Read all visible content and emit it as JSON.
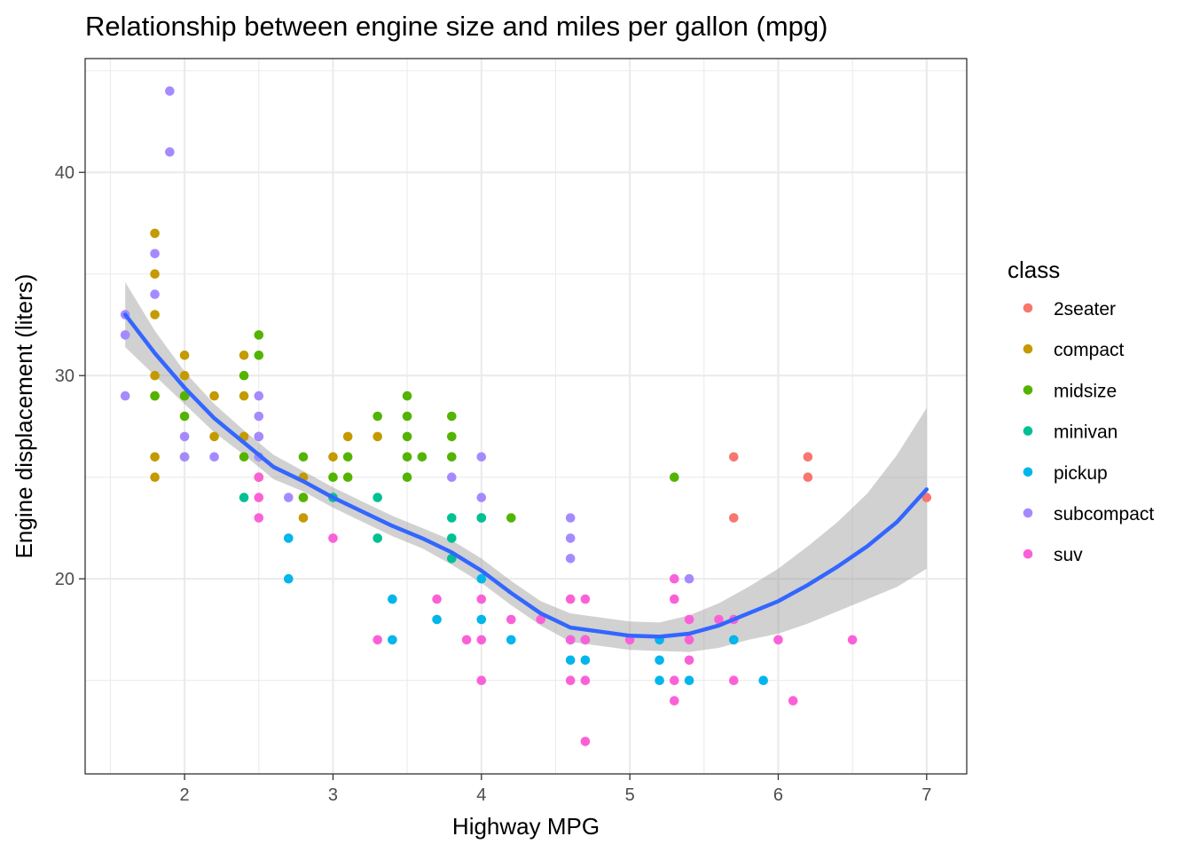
{
  "chart_data": {
    "type": "scatter",
    "title": "Relationship between engine size and miles per gallon (mpg)",
    "xlabel": "Highway MPG",
    "ylabel": "Engine displacement (liters)",
    "xlim": [
      1.33,
      7.27
    ],
    "ylim": [
      10.4,
      45.6
    ],
    "xticks": [
      2,
      3,
      4,
      5,
      6,
      7
    ],
    "yticks": [
      20,
      30,
      40
    ],
    "grid": true,
    "legend": {
      "title": "class",
      "placement": "right",
      "entries": [
        "2seater",
        "compact",
        "midsize",
        "minivan",
        "pickup",
        "subcompact",
        "suv"
      ]
    },
    "colors": {
      "2seater": "#f8766d",
      "compact": "#c49a00",
      "midsize": "#53b400",
      "minivan": "#00c094",
      "pickup": "#00b6eb",
      "subcompact": "#a58aff",
      "suv": "#fb61d7",
      "smooth_line": "#3366ff",
      "ribbon": "#999999"
    },
    "series": [
      {
        "name": "2seater",
        "points": [
          [
            5.7,
            26
          ],
          [
            5.7,
            23
          ],
          [
            6.2,
            26
          ],
          [
            6.2,
            25
          ],
          [
            7.0,
            24
          ]
        ]
      },
      {
        "name": "compact",
        "points": [
          [
            1.8,
            37
          ],
          [
            1.8,
            35
          ],
          [
            1.8,
            33
          ],
          [
            1.8,
            30
          ],
          [
            1.8,
            29
          ],
          [
            1.8,
            26
          ],
          [
            1.8,
            25
          ],
          [
            2.0,
            31
          ],
          [
            2.0,
            30
          ],
          [
            2.0,
            29
          ],
          [
            2.2,
            29
          ],
          [
            2.2,
            27
          ],
          [
            2.4,
            31
          ],
          [
            2.4,
            29
          ],
          [
            2.4,
            27
          ],
          [
            2.5,
            27
          ],
          [
            2.5,
            25
          ],
          [
            2.8,
            25
          ],
          [
            2.8,
            24
          ],
          [
            2.8,
            23
          ],
          [
            3.0,
            26
          ],
          [
            3.1,
            27
          ],
          [
            3.3,
            27
          ]
        ]
      },
      {
        "name": "midsize",
        "points": [
          [
            1.8,
            29
          ],
          [
            2.0,
            29
          ],
          [
            2.0,
            28
          ],
          [
            2.0,
            26
          ],
          [
            2.4,
            30
          ],
          [
            2.4,
            26
          ],
          [
            2.5,
            32
          ],
          [
            2.5,
            31
          ],
          [
            2.8,
            26
          ],
          [
            2.8,
            24
          ],
          [
            3.0,
            25
          ],
          [
            3.1,
            26
          ],
          [
            3.1,
            25
          ],
          [
            3.3,
            28
          ],
          [
            3.5,
            29
          ],
          [
            3.5,
            28
          ],
          [
            3.5,
            27
          ],
          [
            3.5,
            26
          ],
          [
            3.5,
            25
          ],
          [
            3.6,
            26
          ],
          [
            3.8,
            28
          ],
          [
            3.8,
            27
          ],
          [
            3.8,
            26
          ],
          [
            4.0,
            23
          ],
          [
            4.2,
            23
          ],
          [
            5.3,
            25
          ]
        ]
      },
      {
        "name": "minivan",
        "points": [
          [
            2.4,
            24
          ],
          [
            3.0,
            24
          ],
          [
            3.3,
            24
          ],
          [
            3.3,
            22
          ],
          [
            3.8,
            23
          ],
          [
            3.8,
            22
          ],
          [
            3.8,
            21
          ],
          [
            4.0,
            23
          ]
        ]
      },
      {
        "name": "pickup",
        "points": [
          [
            2.7,
            22
          ],
          [
            2.7,
            20
          ],
          [
            3.4,
            19
          ],
          [
            3.4,
            17
          ],
          [
            3.7,
            18
          ],
          [
            4.0,
            20
          ],
          [
            4.0,
            18
          ],
          [
            4.2,
            17
          ],
          [
            4.6,
            17
          ],
          [
            4.6,
            16
          ],
          [
            4.7,
            17
          ],
          [
            4.7,
            16
          ],
          [
            5.2,
            17
          ],
          [
            5.2,
            16
          ],
          [
            5.2,
            15
          ],
          [
            5.4,
            15
          ],
          [
            5.7,
            17
          ],
          [
            5.9,
            15
          ]
        ]
      },
      {
        "name": "subcompact",
        "points": [
          [
            1.6,
            33
          ],
          [
            1.6,
            32
          ],
          [
            1.6,
            29
          ],
          [
            1.8,
            36
          ],
          [
            1.8,
            34
          ],
          [
            1.9,
            44
          ],
          [
            1.9,
            41
          ],
          [
            2.0,
            27
          ],
          [
            2.0,
            26
          ],
          [
            2.2,
            26
          ],
          [
            2.5,
            29
          ],
          [
            2.5,
            28
          ],
          [
            2.5,
            27
          ],
          [
            2.5,
            26
          ],
          [
            2.7,
            24
          ],
          [
            3.8,
            25
          ],
          [
            4.0,
            26
          ],
          [
            4.0,
            24
          ],
          [
            4.6,
            23
          ],
          [
            4.6,
            22
          ],
          [
            4.6,
            21
          ],
          [
            5.4,
            20
          ]
        ]
      },
      {
        "name": "suv",
        "points": [
          [
            2.5,
            25
          ],
          [
            2.5,
            24
          ],
          [
            2.5,
            23
          ],
          [
            3.0,
            22
          ],
          [
            3.3,
            17
          ],
          [
            3.7,
            19
          ],
          [
            3.9,
            17
          ],
          [
            4.0,
            19
          ],
          [
            4.0,
            17
          ],
          [
            4.0,
            15
          ],
          [
            4.2,
            18
          ],
          [
            4.4,
            18
          ],
          [
            4.6,
            19
          ],
          [
            4.6,
            17
          ],
          [
            4.6,
            15
          ],
          [
            4.7,
            19
          ],
          [
            4.7,
            17
          ],
          [
            4.7,
            15
          ],
          [
            4.7,
            12
          ],
          [
            5.0,
            17
          ],
          [
            5.3,
            20
          ],
          [
            5.3,
            19
          ],
          [
            5.3,
            15
          ],
          [
            5.3,
            14
          ],
          [
            5.4,
            18
          ],
          [
            5.4,
            17
          ],
          [
            5.4,
            16
          ],
          [
            5.6,
            18
          ],
          [
            5.7,
            18
          ],
          [
            5.7,
            15
          ],
          [
            6.0,
            17
          ],
          [
            6.1,
            14
          ],
          [
            6.5,
            17
          ]
        ]
      }
    ],
    "smooth": {
      "method": "loess",
      "x": [
        1.6,
        1.8,
        2.0,
        2.2,
        2.4,
        2.6,
        2.8,
        3.0,
        3.2,
        3.4,
        3.6,
        3.8,
        4.0,
        4.2,
        4.4,
        4.6,
        4.8,
        5.0,
        5.2,
        5.4,
        5.6,
        5.8,
        6.0,
        6.2,
        6.4,
        6.6,
        6.8,
        7.0
      ],
      "y": [
        33.0,
        31.1,
        29.4,
        27.9,
        26.7,
        25.5,
        24.8,
        24.0,
        23.3,
        22.6,
        22.0,
        21.3,
        20.4,
        19.3,
        18.3,
        17.6,
        17.4,
        17.2,
        17.15,
        17.3,
        17.7,
        18.3,
        18.9,
        19.7,
        20.6,
        21.6,
        22.8,
        24.4
      ],
      "upper": [
        34.6,
        32.2,
        30.2,
        28.6,
        27.3,
        26.1,
        25.3,
        24.5,
        23.8,
        23.1,
        22.5,
        21.9,
        21.0,
        19.9,
        18.9,
        18.3,
        18.1,
        17.9,
        17.85,
        18.2,
        18.8,
        19.6,
        20.5,
        21.6,
        22.8,
        24.2,
        26.1,
        28.4
      ],
      "lower": [
        31.4,
        30.0,
        28.6,
        27.2,
        26.1,
        24.9,
        24.3,
        23.5,
        22.8,
        22.1,
        21.5,
        20.7,
        19.8,
        18.7,
        17.7,
        16.9,
        16.7,
        16.5,
        16.45,
        16.4,
        16.6,
        17.0,
        17.3,
        17.8,
        18.4,
        19.0,
        19.6,
        20.5
      ]
    }
  }
}
